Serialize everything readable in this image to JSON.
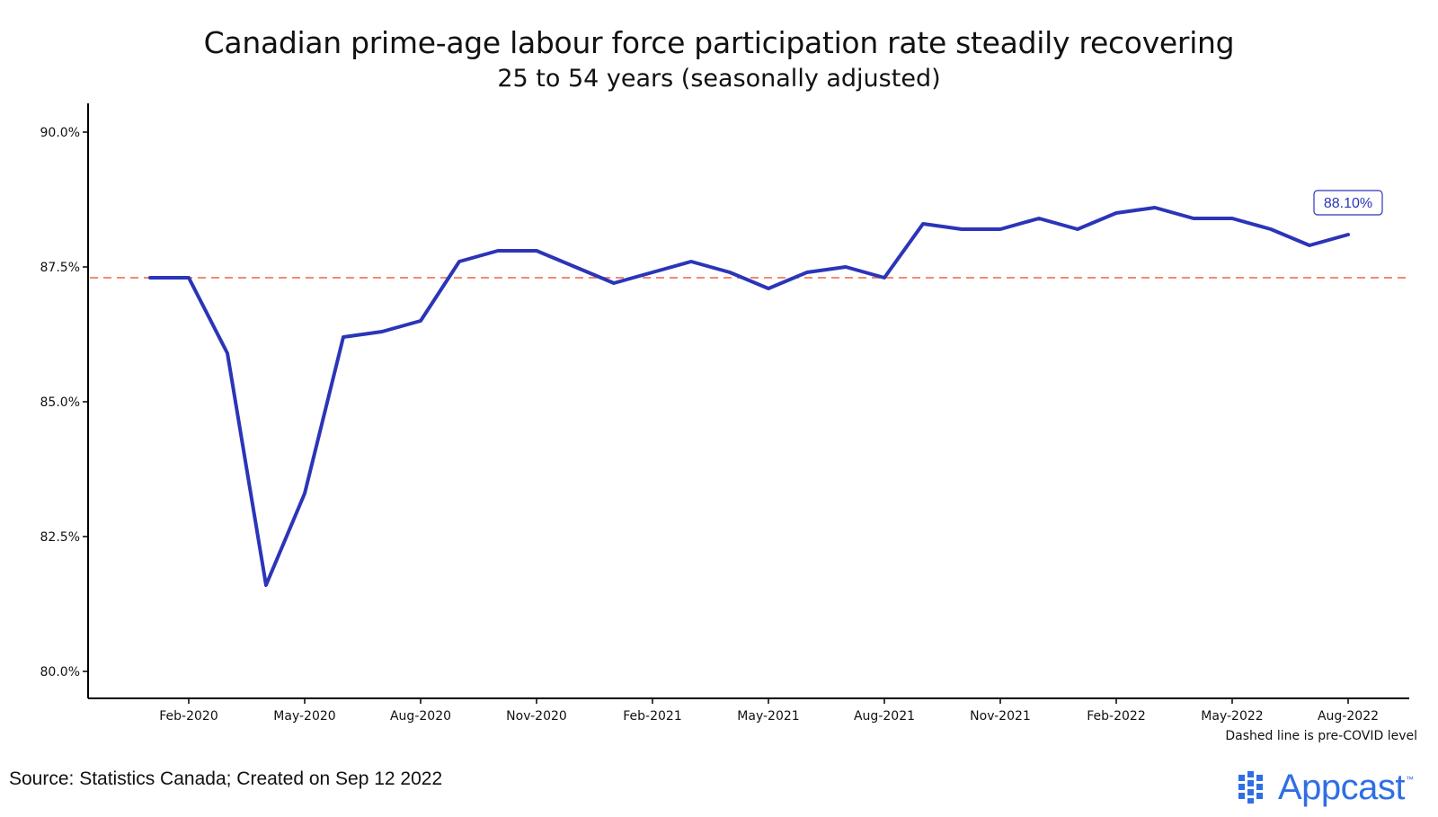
{
  "chart_data": {
    "type": "line",
    "title": "Canadian prime-age labour force participation rate steadily recovering",
    "subtitle": "25 to 54 years (seasonally adjusted)",
    "ylim": [
      80.0,
      90.0
    ],
    "y_ticks": [
      80.0,
      82.5,
      85.0,
      87.5,
      90.0
    ],
    "y_tick_labels": [
      "80.0%",
      "82.5%",
      "85.0%",
      "87.5%",
      "90.0%"
    ],
    "x_tick_labels": [
      "Feb-2020",
      "May-2020",
      "Aug-2020",
      "Nov-2020",
      "Feb-2021",
      "May-2021",
      "Aug-2021",
      "Nov-2021",
      "Feb-2022",
      "May-2022",
      "Aug-2022"
    ],
    "x_tick_months": [
      "2020-02",
      "2020-05",
      "2020-08",
      "2020-11",
      "2021-02",
      "2021-05",
      "2021-08",
      "2021-11",
      "2022-02",
      "2022-05",
      "2022-08"
    ],
    "series": [
      {
        "color": "#2b35b8",
        "x": [
          "2020-01",
          "2020-02",
          "2020-03",
          "2020-04",
          "2020-05",
          "2020-06",
          "2020-07",
          "2020-08",
          "2020-09",
          "2020-10",
          "2020-11",
          "2020-12",
          "2021-01",
          "2021-02",
          "2021-03",
          "2021-04",
          "2021-05",
          "2021-06",
          "2021-07",
          "2021-08",
          "2021-09",
          "2021-10",
          "2021-11",
          "2021-12",
          "2022-01",
          "2022-02",
          "2022-03",
          "2022-04",
          "2022-05",
          "2022-06",
          "2022-07",
          "2022-08"
        ],
        "values": [
          87.3,
          87.3,
          85.9,
          81.6,
          83.3,
          86.2,
          86.3,
          86.5,
          87.6,
          87.8,
          87.8,
          87.5,
          87.2,
          87.4,
          87.6,
          87.4,
          87.1,
          87.4,
          87.5,
          87.3,
          88.3,
          88.2,
          88.2,
          88.4,
          88.2,
          88.5,
          88.6,
          88.4,
          88.4,
          88.2,
          87.9,
          88.1
        ]
      }
    ],
    "reference_line": {
      "value": 87.3,
      "style": "dashed",
      "color": "#f07a5e"
    },
    "last_value_label": "88.10%",
    "caption": "Dashed line is pre-COVID level",
    "grid": false,
    "legend": "none"
  },
  "footer": {
    "source": "Source: Statistics Canada; Created on Sep 12 2022",
    "logo_text": "Appcast",
    "logo_tm": "™"
  }
}
